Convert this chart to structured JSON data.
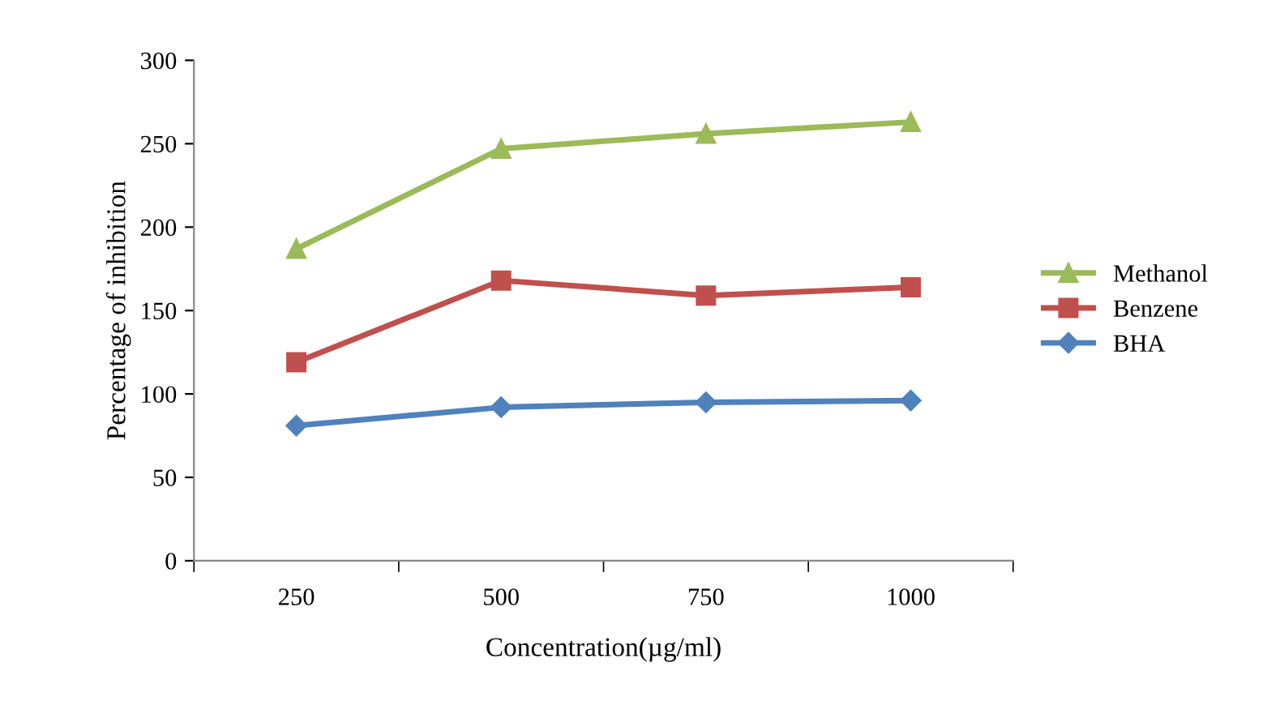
{
  "chart_data": {
    "type": "line",
    "xlabel": "Concentration(µg/ml)",
    "ylabel": "Percentage of inhibition",
    "categories": [
      "250",
      "500",
      "750",
      "1000"
    ],
    "series": [
      {
        "name": "Methanol",
        "color": "#9bbb59",
        "marker": "triangle",
        "values": [
          187,
          247,
          256,
          263
        ]
      },
      {
        "name": "Benzene",
        "color": "#c0504d",
        "marker": "square",
        "values": [
          119,
          168,
          159,
          164
        ]
      },
      {
        "name": "BHA",
        "color": "#4f81bd",
        "marker": "diamond",
        "values": [
          81,
          92,
          95,
          96
        ]
      }
    ],
    "ylim": [
      0,
      300
    ],
    "yticks": [
      0,
      50,
      100,
      150,
      200,
      250,
      300
    ],
    "grid": false,
    "legend": "right",
    "line_style": "solid"
  }
}
